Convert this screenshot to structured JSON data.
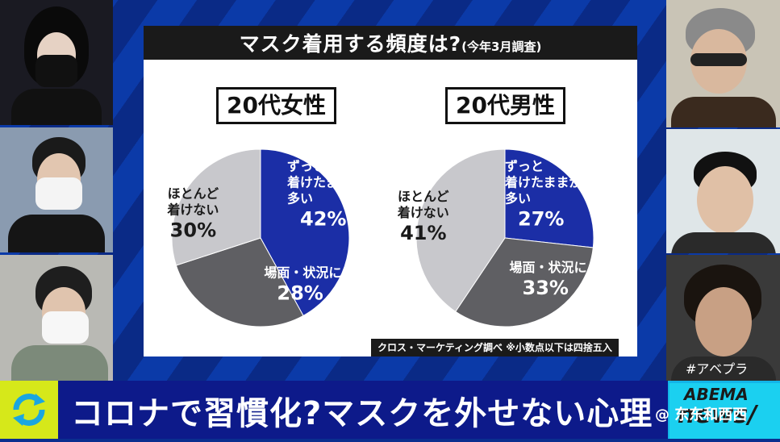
{
  "board": {
    "title": "マスク着用する頻度は?",
    "title_note": "(今年3月調査)",
    "footnote": "クロス・マーケティング調べ ※小数点以下は四捨五入"
  },
  "bottom": {
    "headline": "コロナで習慣化?マスクを外せない心理",
    "hashtag": "#アベプラ",
    "brand_top": "ABEMA",
    "brand_bottom": "news/",
    "watermark": "@ 东东和西西"
  },
  "colors": {
    "blue": "#1b2ea6",
    "dark_gray": "#5f5f63",
    "light_gray": "#c8c8cc",
    "header": "#1a1a1a"
  },
  "chart_data": [
    {
      "type": "pie",
      "title": "20代女性",
      "slices": [
        {
          "label": "ずっと着けたままが多い",
          "value": 42,
          "display": "42%",
          "color": "#1b2ea6"
        },
        {
          "label": "場面・状況による",
          "value": 28,
          "display": "28%",
          "color": "#5f5f63"
        },
        {
          "label": "ほとんど着けない",
          "value": 30,
          "display": "30%",
          "color": "#c8c8cc"
        }
      ]
    },
    {
      "type": "pie",
      "title": "20代男性",
      "slices": [
        {
          "label": "ずっと着けたままが多い",
          "value": 27,
          "display": "27%",
          "color": "#1b2ea6"
        },
        {
          "label": "場面・状況による",
          "value": 33,
          "display": "33%",
          "color": "#5f5f63"
        },
        {
          "label": "ほとんど着けない",
          "value": 41,
          "display": "41%",
          "color": "#c8c8cc"
        }
      ]
    }
  ]
}
